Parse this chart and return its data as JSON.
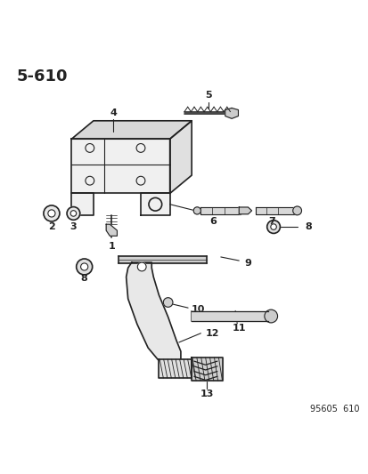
{
  "title": "5-610",
  "footer": "95605  610",
  "background_color": "#ffffff",
  "line_color": "#222222",
  "fig_width": 4.14,
  "fig_height": 5.33
}
